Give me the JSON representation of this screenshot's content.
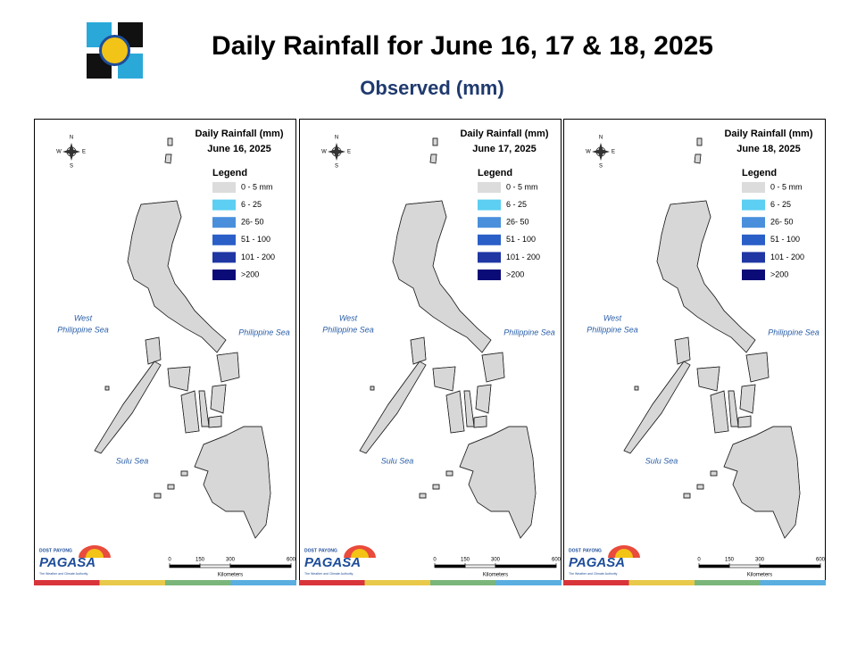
{
  "header": {
    "title": "Daily Rainfall for June 16, 17 & 18, 2025",
    "subtitle": "Observed (mm)"
  },
  "panels": [
    {
      "title": "Daily Rainfall (mm)",
      "date": "June 16, 2025"
    },
    {
      "title": "Daily Rainfall (mm)",
      "date": "June 17, 2025"
    },
    {
      "title": "Daily Rainfall (mm)",
      "date": "June 18, 2025"
    }
  ],
  "legend": {
    "title": "Legend",
    "items": [
      {
        "label": "0 - 5 mm",
        "color": "#dcdcdc"
      },
      {
        "label": "6 - 25",
        "color": "#5ccff2"
      },
      {
        "label": "26- 50",
        "color": "#4a8fdc"
      },
      {
        "label": "51 - 100",
        "color": "#2a5fc8"
      },
      {
        "label": "101 - 200",
        "color": "#1f36a3"
      },
      {
        "label": ">200",
        "color": "#0b0b78"
      }
    ]
  },
  "compass": {
    "n": "N",
    "s": "S",
    "e": "E",
    "w": "W"
  },
  "seas": {
    "west": [
      "West",
      "Philippine Sea"
    ],
    "east": "Philippine Sea",
    "south": "Sulu Sea"
  },
  "scale": {
    "ticks": [
      0,
      150,
      300,
      600
    ],
    "unit": "Kilometers"
  },
  "logo": {
    "agency": "DOST",
    "program": "PAYONG",
    "brand": "PAGASA",
    "tagline": "The Weather and Climate Authority"
  }
}
